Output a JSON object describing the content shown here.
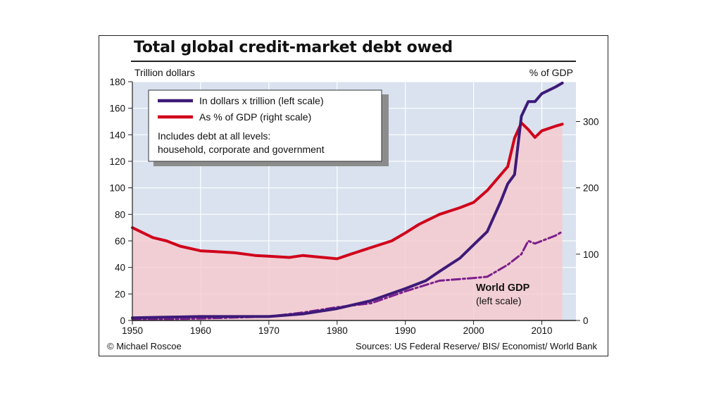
{
  "chart_data": {
    "type": "line",
    "title": "Total global credit-market debt owed",
    "ylabel_left": "Trillion dollars",
    "ylabel_right": "% of GDP",
    "xlim": [
      1950,
      2015
    ],
    "ylim_left": [
      0,
      180
    ],
    "ylim_right": [
      0,
      360
    ],
    "x_ticks": [
      1950,
      1960,
      1970,
      1980,
      1990,
      2000,
      2010
    ],
    "y_ticks_left": [
      0,
      20,
      40,
      60,
      80,
      100,
      120,
      140,
      160,
      180
    ],
    "y_ticks_right": [
      0,
      100,
      200,
      300
    ],
    "grid": true,
    "legend": {
      "placement": "top-left",
      "entries": [
        "In dollars x trillion (left scale)",
        "As % of GDP (right scale)"
      ],
      "note_lines": [
        "Includes debt at all levels:",
        "household, corporate and government"
      ]
    },
    "annotation": {
      "lines": [
        "World GDP",
        "(left scale)"
      ]
    },
    "credit": "© Michael Roscoe",
    "source": "Sources: US Federal Reserve/ BIS/ Economist/ World Bank",
    "colors": {
      "debt_dollars": "#3d1a78",
      "debt_pct_gdp": "#d0021b",
      "world_gdp": "#7b1f8c",
      "pct_area": "#f6c9cd",
      "plot_bg": "#d9e2ee"
    },
    "series": [
      {
        "name": "In dollars x trillion (left scale)",
        "axis": "left",
        "x": [
          1950,
          1955,
          1960,
          1965,
          1970,
          1975,
          1980,
          1985,
          1990,
          1993,
          1995,
          1998,
          2000,
          2002,
          2004,
          2005,
          2006,
          2007,
          2008,
          2009,
          2010,
          2012,
          2013
        ],
        "y": [
          2,
          2.5,
          3,
          3,
          3,
          5,
          9,
          15,
          24,
          30,
          37,
          47,
          57,
          67,
          90,
          103,
          110,
          154,
          165,
          165,
          171,
          176,
          179
        ]
      },
      {
        "name": "As % of GDP (right scale)",
        "axis": "right",
        "x": [
          1950,
          1953,
          1955,
          1957,
          1960,
          1962,
          1965,
          1968,
          1970,
          1973,
          1975,
          1977,
          1980,
          1982,
          1985,
          1988,
          1990,
          1992,
          1995,
          1998,
          2000,
          2002,
          2004,
          2005,
          2006,
          2007,
          2008,
          2009,
          2010,
          2012,
          2013
        ],
        "y": [
          140,
          125,
          120,
          112,
          105,
          104,
          102,
          98,
          97,
          95,
          98,
          96,
          93,
          100,
          110,
          120,
          132,
          145,
          160,
          170,
          178,
          196,
          220,
          232,
          275,
          298,
          288,
          276,
          286,
          293,
          296
        ]
      },
      {
        "name": "World GDP",
        "axis": "left",
        "x": [
          1950,
          1960,
          1970,
          1975,
          1980,
          1985,
          1990,
          1995,
          2000,
          2002,
          2005,
          2007,
          2008,
          2009,
          2010,
          2012,
          2013
        ],
        "y": [
          0.5,
          1.5,
          3,
          6,
          10,
          13,
          22,
          30,
          32,
          33,
          42,
          50,
          60,
          58,
          60,
          64,
          67
        ]
      }
    ]
  }
}
